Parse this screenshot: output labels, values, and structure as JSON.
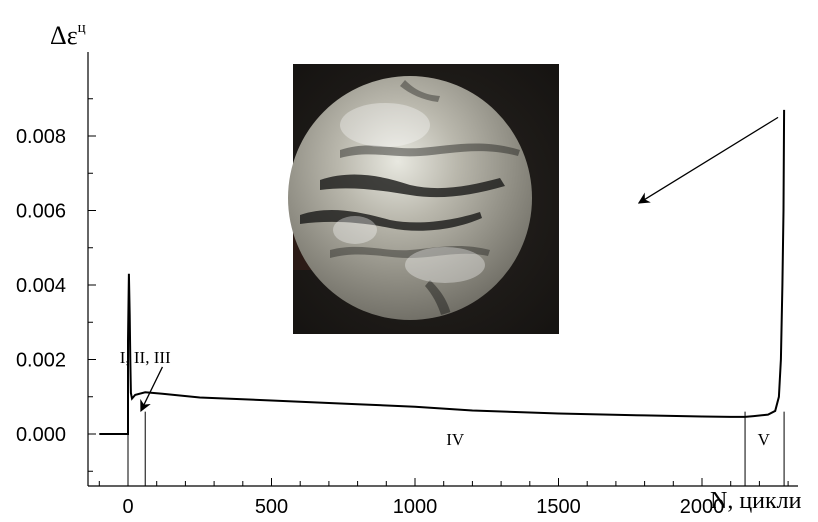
{
  "chart_data": {
    "type": "line",
    "title": "",
    "xlabel": "N, цикли",
    "ylabel": "Δε",
    "ylabel_superscript": "ц",
    "xlim": [
      -100,
      2550
    ],
    "ylim": [
      -0.0014,
      0.0102
    ],
    "x_ticks": [
      0,
      500,
      1000,
      1500,
      2000
    ],
    "x_tick_labels": [
      "0",
      "500",
      "1000",
      "1500",
      "2000"
    ],
    "y_ticks": [
      0.0,
      0.002,
      0.004,
      0.006,
      0.008
    ],
    "y_tick_labels": [
      "0.000",
      "0.002",
      "0.004",
      "0.006",
      "0.008"
    ],
    "grid": false,
    "legend": "none",
    "series": [
      {
        "color": "#000000",
        "points": [
          [
            -100,
            0.0
          ],
          [
            0,
            0.0
          ],
          [
            0,
            0.0025
          ],
          [
            3,
            0.0043
          ],
          [
            6,
            0.0032
          ],
          [
            8,
            0.002
          ],
          [
            10,
            0.0011
          ],
          [
            14,
            0.00095
          ],
          [
            25,
            0.00105
          ],
          [
            60,
            0.00112
          ],
          [
            120,
            0.00108
          ],
          [
            250,
            0.00098
          ],
          [
            500,
            0.0009
          ],
          [
            800,
            0.0008
          ],
          [
            1000,
            0.00073
          ],
          [
            1200,
            0.00063
          ],
          [
            1500,
            0.00055
          ],
          [
            1800,
            0.0005
          ],
          [
            2000,
            0.00047
          ],
          [
            2100,
            0.00046
          ],
          [
            2150,
            0.00046
          ],
          [
            2180,
            0.00048
          ],
          [
            2230,
            0.00052
          ],
          [
            2255,
            0.00062
          ],
          [
            2268,
            0.001
          ],
          [
            2275,
            0.002
          ],
          [
            2280,
            0.004
          ],
          [
            2284,
            0.006
          ],
          [
            2286,
            0.0087
          ]
        ]
      }
    ],
    "stage_boundaries": [
      0,
      60,
      2150,
      2286
    ],
    "annotations": [
      {
        "text": "I, II, III",
        "x": 60,
        "y": 0.0019
      },
      {
        "text": "IV",
        "x": 1140,
        "y": -0.0003
      },
      {
        "text": "V",
        "x": 2215,
        "y": -0.0003
      }
    ],
    "arrows": [
      {
        "from": [
          120,
          0.0018
        ],
        "to": [
          45,
          0.00062
        ]
      },
      {
        "from": [
          2265,
          0.0085
        ],
        "to": [
          1780,
          0.0062
        ]
      }
    ],
    "inset_image": {
      "description_icon": "fracture-surface-photo"
    }
  }
}
